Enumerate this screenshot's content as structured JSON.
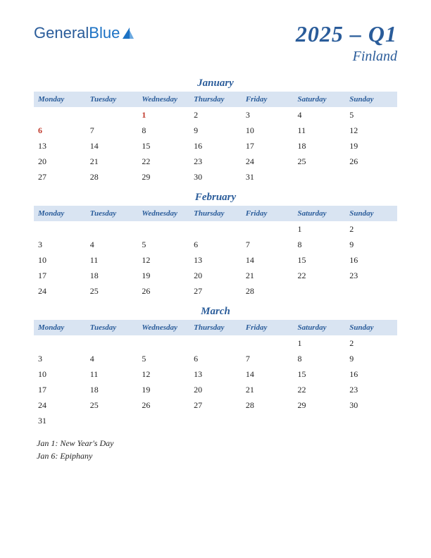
{
  "logo": {
    "text1": "General",
    "text2": "Blue"
  },
  "title": "2025 – Q1",
  "subtitle": "Finland",
  "colors": {
    "header_bg": "#d9e4f2",
    "accent": "#2a5c9a",
    "holiday": "#c0392b",
    "text": "#222222",
    "background": "#ffffff"
  },
  "weekdays": [
    "Monday",
    "Tuesday",
    "Wednesday",
    "Thursday",
    "Friday",
    "Saturday",
    "Sunday"
  ],
  "months": [
    {
      "name": "January",
      "weeks": [
        [
          "",
          "",
          "1",
          "2",
          "3",
          "4",
          "5"
        ],
        [
          "6",
          "7",
          "8",
          "9",
          "10",
          "11",
          "12"
        ],
        [
          "13",
          "14",
          "15",
          "16",
          "17",
          "18",
          "19"
        ],
        [
          "20",
          "21",
          "22",
          "23",
          "24",
          "25",
          "26"
        ],
        [
          "27",
          "28",
          "29",
          "30",
          "31",
          "",
          ""
        ]
      ],
      "holidays": [
        "1",
        "6"
      ]
    },
    {
      "name": "February",
      "weeks": [
        [
          "",
          "",
          "",
          "",
          "",
          "1",
          "2"
        ],
        [
          "3",
          "4",
          "5",
          "6",
          "7",
          "8",
          "9"
        ],
        [
          "10",
          "11",
          "12",
          "13",
          "14",
          "15",
          "16"
        ],
        [
          "17",
          "18",
          "19",
          "20",
          "21",
          "22",
          "23"
        ],
        [
          "24",
          "25",
          "26",
          "27",
          "28",
          "",
          ""
        ]
      ],
      "holidays": []
    },
    {
      "name": "March",
      "weeks": [
        [
          "",
          "",
          "",
          "",
          "",
          "1",
          "2"
        ],
        [
          "3",
          "4",
          "5",
          "6",
          "7",
          "8",
          "9"
        ],
        [
          "10",
          "11",
          "12",
          "13",
          "14",
          "15",
          "16"
        ],
        [
          "17",
          "18",
          "19",
          "20",
          "21",
          "22",
          "23"
        ],
        [
          "24",
          "25",
          "26",
          "27",
          "28",
          "29",
          "30"
        ],
        [
          "31",
          "",
          "",
          "",
          "",
          "",
          ""
        ]
      ],
      "holidays": []
    }
  ],
  "footnotes": [
    "Jan 1: New Year's Day",
    "Jan 6: Epiphany"
  ]
}
